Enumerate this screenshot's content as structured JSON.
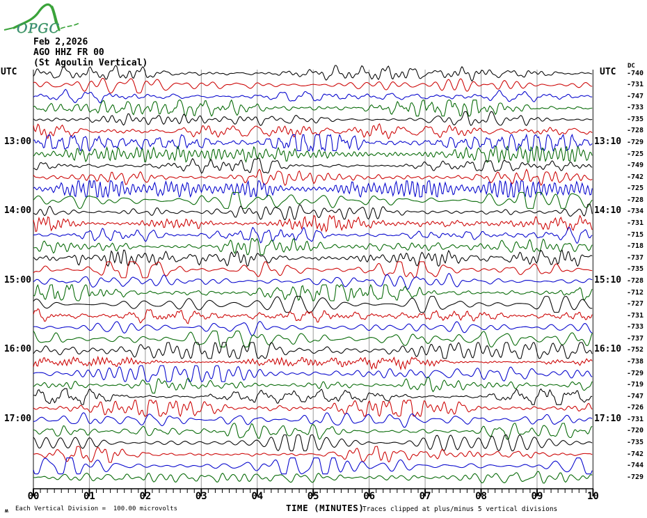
{
  "logo": {
    "text": "OPGC",
    "curve_color": "#3aa33a",
    "text_color": "#3d7f9a"
  },
  "header": {
    "date": "Feb 2,2026",
    "station": "AGO HHZ FR 00",
    "location": "(St Agoulin Vertical)"
  },
  "left_axis": {
    "title": "UTC"
  },
  "right_axis": {
    "title": "UTC",
    "dc_header": "DC"
  },
  "x_axis": {
    "title": "TIME (MINUTES)",
    "tick_labels": [
      "00",
      "01",
      "02",
      "03",
      "04",
      "05",
      "06",
      "07",
      "08",
      "09",
      "10"
    ]
  },
  "footer": {
    "scale_mark": "ʍ",
    "scale_note": "Each Vertical Division =  100.00 microvolts",
    "clip_note": "Traces clipped at plus/minus 5 vertical divisions"
  },
  "chart_data": {
    "type": "line",
    "title": "AGO HHZ FR 00 (St Agoulin Vertical) helicorder, Feb 2,2026",
    "xlabel": "TIME (MINUTES)",
    "xlim": [
      0,
      10
    ],
    "grid": true,
    "num_rows": 36,
    "minutes_per_row": 10,
    "minor_ticks_per_minute": 8,
    "row_colors_cycle": [
      "#000000",
      "#cc0000",
      "#0000cc",
      "#006600"
    ],
    "grid_color": "#999999",
    "border_color": "#444444",
    "hour_labels": [
      {
        "row": 6,
        "left": "13:00",
        "right": "13:10"
      },
      {
        "row": 12,
        "left": "14:00",
        "right": "14:10"
      },
      {
        "row": 18,
        "left": "15:00",
        "right": "15:10"
      },
      {
        "row": 24,
        "left": "16:00",
        "right": "16:10"
      },
      {
        "row": 30,
        "left": "17:00",
        "right": "17:10"
      }
    ],
    "dc_values": [
      -740,
      -731,
      -747,
      -733,
      -735,
      -728,
      -729,
      -725,
      -749,
      -742,
      -725,
      -728,
      -734,
      -731,
      -715,
      -718,
      -737,
      -735,
      -728,
      -712,
      -727,
      -731,
      -733,
      -737,
      -752,
      -738,
      -729,
      -719,
      -747,
      -726,
      -731,
      -720,
      -735,
      -742,
      -744,
      -729
    ]
  }
}
